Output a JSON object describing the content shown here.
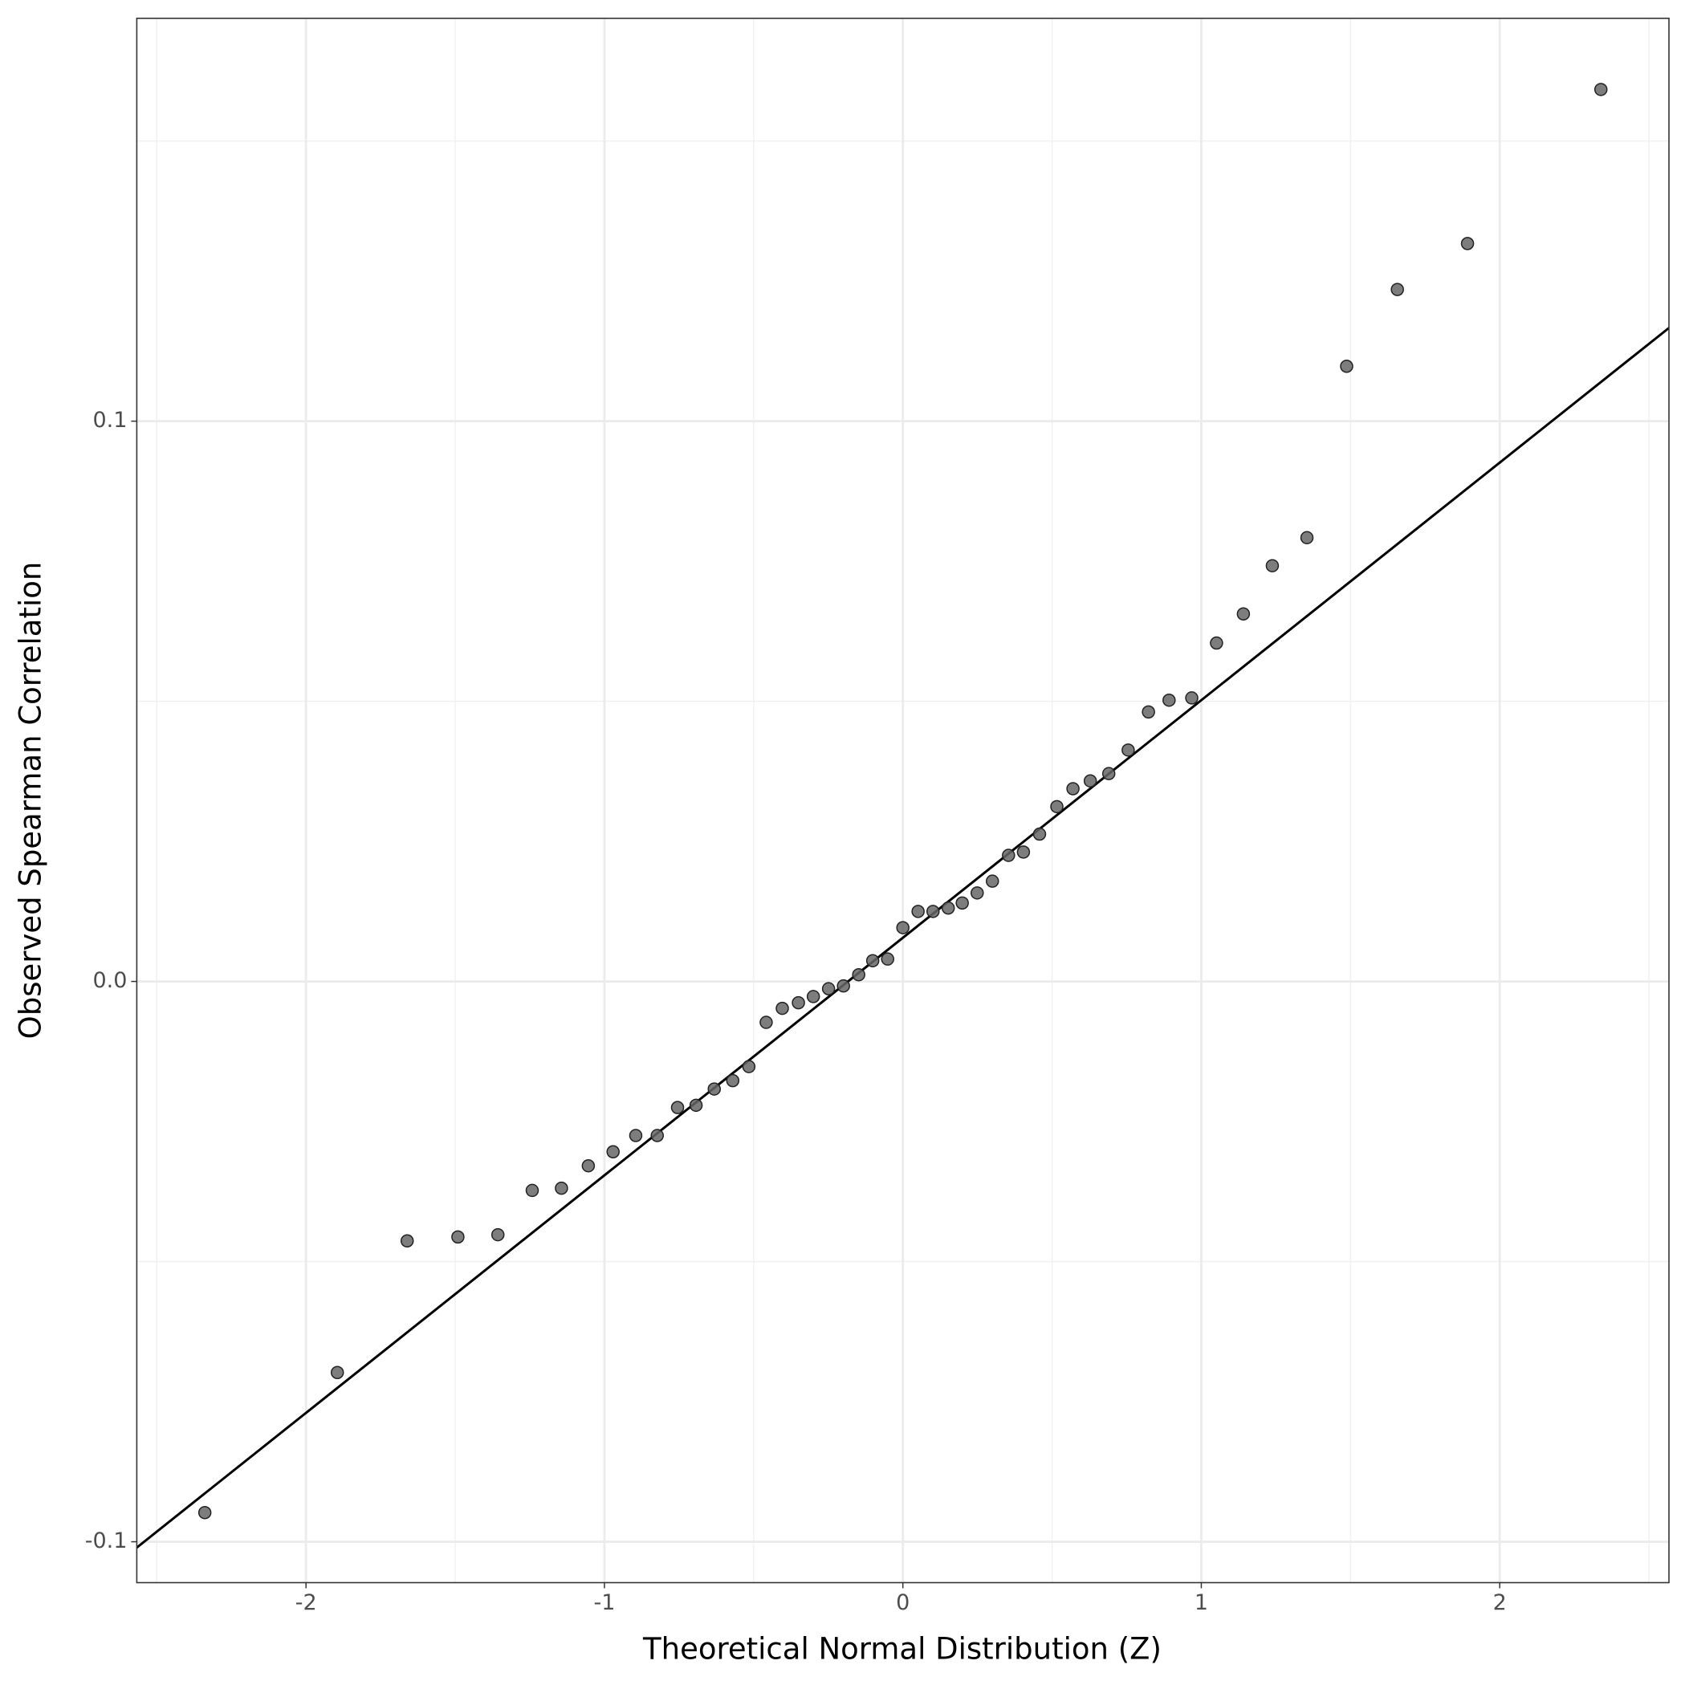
{
  "chart_data": {
    "type": "scatter",
    "xlabel": "Theoretical Normal Distribution (Z)",
    "ylabel": "Observed Spearman Correlation",
    "xlim": [
      -2.567,
      2.567
    ],
    "ylim": [
      -0.1073,
      0.1719
    ],
    "xticks": [
      -2,
      -1,
      0,
      1,
      2
    ],
    "yticks": [
      -0.1,
      {
        "value": 0,
        "label": "0.0"
      },
      0.1
    ],
    "xminor": [
      -2.5,
      -1.5,
      -0.5,
      0.5,
      1.5,
      2.5
    ],
    "yminor": [
      -0.05,
      0.05,
      0.15
    ],
    "grid": true,
    "color": "#666666",
    "reference_line": {
      "intercept": 0.0078,
      "slope": 0.0424,
      "color": "#000000"
    },
    "x": [
      -2.339,
      -1.895,
      -1.661,
      -1.491,
      -1.357,
      -1.242,
      -1.144,
      -1.054,
      -0.971,
      -0.895,
      -0.823,
      -0.755,
      -0.693,
      -0.632,
      -0.57,
      -0.516,
      -0.458,
      -0.404,
      -0.35,
      -0.3,
      -0.249,
      -0.199,
      -0.148,
      -0.101,
      -0.051,
      0.0,
      0.051,
      0.101,
      0.152,
      0.199,
      0.249,
      0.3,
      0.354,
      0.404,
      0.458,
      0.516,
      0.57,
      0.628,
      0.69,
      0.755,
      0.823,
      0.892,
      0.968,
      1.051,
      1.141,
      1.238,
      1.354,
      1.487,
      1.657,
      1.892,
      2.339
    ],
    "values": [
      -0.0948,
      -0.0698,
      -0.0463,
      -0.0456,
      -0.0452,
      -0.0373,
      -0.0369,
      -0.0329,
      -0.0304,
      -0.0275,
      -0.0275,
      -0.0225,
      -0.0221,
      -0.0192,
      -0.0177,
      -0.0152,
      -0.0073,
      -0.0048,
      -0.0038,
      -0.0027,
      -0.0013,
      -0.0008,
      0.0012,
      0.0037,
      0.004,
      0.0096,
      0.0125,
      0.0125,
      0.0131,
      0.014,
      0.0158,
      0.0179,
      0.0225,
      0.0231,
      0.0263,
      0.0312,
      0.0344,
      0.0358,
      0.0371,
      0.0413,
      0.0481,
      0.0502,
      0.0506,
      0.0604,
      0.0656,
      0.0742,
      0.0792,
      0.1098,
      0.1235,
      0.1317,
      0.1592
    ]
  }
}
